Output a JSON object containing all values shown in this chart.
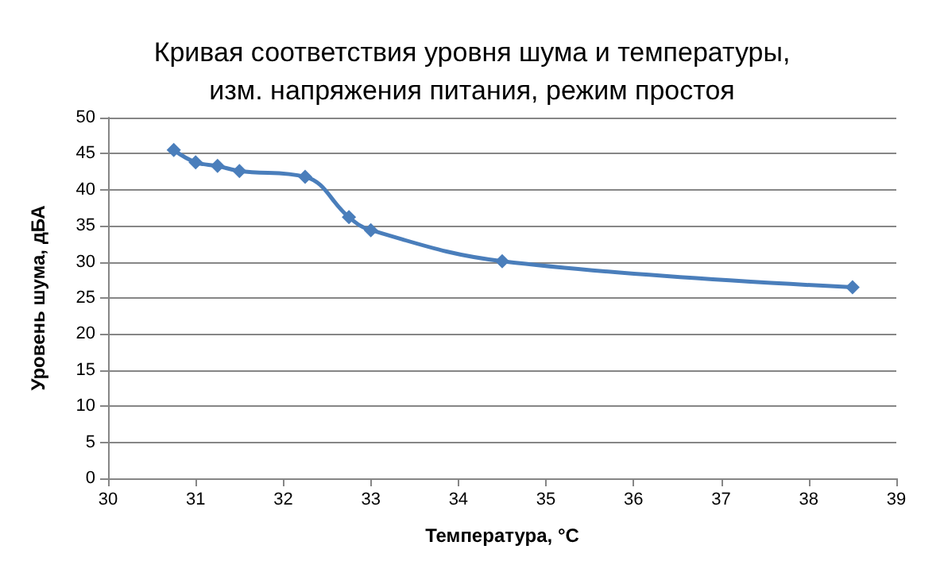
{
  "chart_data": {
    "type": "line",
    "title": "Кривая соответствия уровня шума и температуры,\nизм. напряжения питания, режим простоя",
    "xlabel": "Температура, °С",
    "ylabel": "Уровень шума, дБА",
    "x": [
      30.75,
      31,
      31.25,
      31.5,
      32.25,
      32.75,
      33,
      34.5,
      38.5
    ],
    "series": [
      {
        "color": "#4a7ebb",
        "values": [
          45.5,
          43.8,
          43.3,
          42.6,
          41.8,
          36.2,
          34.4,
          30.1,
          26.5
        ]
      }
    ],
    "xlim": [
      30,
      39
    ],
    "xticks": [
      30,
      31,
      32,
      33,
      34,
      35,
      36,
      37,
      38,
      39
    ],
    "ylim": [
      0,
      50
    ],
    "yticks": [
      0,
      5,
      10,
      15,
      20,
      25,
      30,
      35,
      40,
      45,
      50
    ],
    "grid": "y",
    "marker": "diamond",
    "line_style": "solid"
  }
}
